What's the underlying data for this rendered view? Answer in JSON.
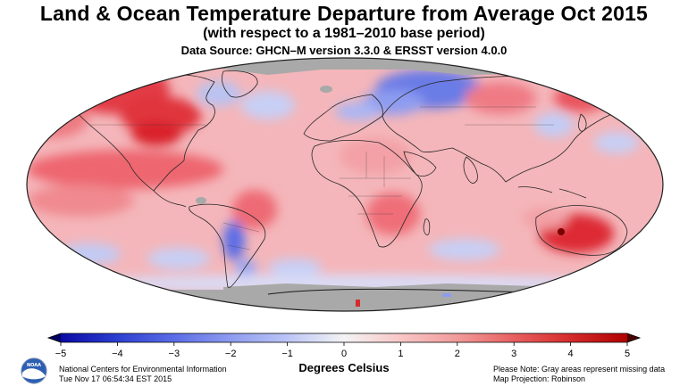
{
  "header": {
    "title": "Land & Ocean Temperature Departure from Average Oct 2015",
    "subtitle": "(with respect to a 1981–2010 base period)",
    "data_source": "Data Source: GHCN–M version 3.3.0 & ERSST version 4.0.0"
  },
  "map": {
    "projection_label": "Map Projection: Robinson",
    "missing_color": "#a9a9a9",
    "ocean_base_color": "#f4b6ba",
    "regions": [
      {
        "name": "north-america-warm",
        "anomaly": 3
      },
      {
        "name": "northeast-pacific-warm",
        "anomaly": 4
      },
      {
        "name": "siberia-cold",
        "anomaly": -3
      },
      {
        "name": "australia-warm",
        "anomaly": 5
      },
      {
        "name": "south-america-warm",
        "anomaly": 2
      },
      {
        "name": "patagonia-cold",
        "anomaly": -3
      },
      {
        "name": "southern-africa-warm",
        "anomaly": 2
      },
      {
        "name": "southern-ocean-cool",
        "anomaly": -1
      }
    ]
  },
  "colorbar": {
    "label": "Degrees Celsius",
    "ticks": [
      "−5",
      "−4",
      "−3",
      "−2",
      "−1",
      "0",
      "1",
      "2",
      "3",
      "4",
      "5"
    ],
    "colors": [
      "#0a0aa6",
      "#2d3fd0",
      "#5b6de6",
      "#8e9cf0",
      "#bcc5f6",
      "#f4f4f4",
      "#f8c6c6",
      "#f29a9a",
      "#e86060",
      "#d52b2b",
      "#b00000"
    ]
  },
  "footer": {
    "org_name": "National Centers for Environmental Information",
    "timestamp": "Tue Nov 17 06:54:34 EST 2015",
    "note": "Please Note: Gray areas represent missing data",
    "projection": "Map Projection: Robinson",
    "logo_text": "NOAA"
  }
}
